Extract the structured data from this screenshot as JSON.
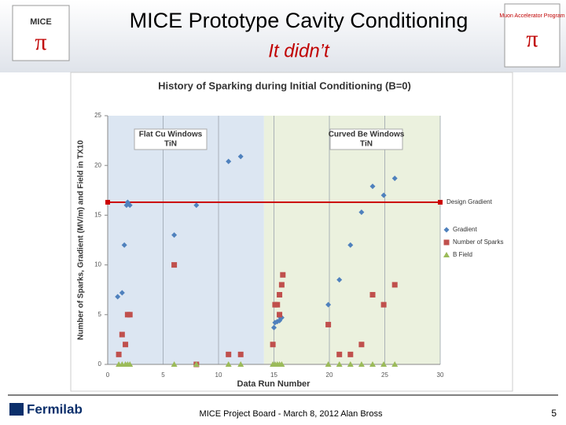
{
  "slide": {
    "title": "MICE Prototype Cavity Conditioning",
    "subtitle": "It didn’t",
    "logo_left": "MICE",
    "logo_right": "Muon Accelerator Program",
    "footer_logo": "Fermilab",
    "footer": "MICE Project Board - March 8, 2012 Alan Bross",
    "page": "5"
  },
  "chart_data": {
    "type": "scatter",
    "title": "History of Sparking during Initial Conditioning (B=0)",
    "x_label": "Data Run Number",
    "y_label": "Number of Sparks, Gradient (MV/m) and Field in TX10",
    "xlim": [
      0,
      30
    ],
    "xticks": [
      0,
      5,
      10,
      15,
      20,
      25,
      30
    ],
    "ylim": [
      0,
      25
    ],
    "yticks": [
      0,
      5,
      10,
      15,
      20,
      25
    ],
    "grid": "x",
    "regions": [
      {
        "label": [
          "Flat Cu Windows",
          "TiN"
        ],
        "range": [
          0,
          14.1
        ],
        "color": "#dce6f2"
      },
      {
        "label": [
          "Curved Be Windows",
          "TiN"
        ],
        "range": [
          14.1,
          30
        ],
        "color": "#ebf1de"
      }
    ],
    "reference_line": {
      "label": "Design Gradient",
      "value": 16.3,
      "color": "#cc0000"
    },
    "series": [
      {
        "name": "Gradient",
        "color": "#4f81bd",
        "marker": "diamond",
        "x": [
          0.9,
          1.3,
          1.5,
          1.8,
          2.0,
          1.7,
          6.0,
          8.0,
          10.9,
          12.0,
          15.0,
          15.1,
          15.3,
          15.5,
          15.6,
          15.7,
          19.9,
          20.9,
          21.9,
          22.9,
          23.9,
          24.9,
          25.9
        ],
        "values": [
          6.8,
          7.2,
          12.0,
          16.3,
          16.0,
          16.0,
          13.0,
          16.0,
          20.4,
          20.9,
          3.7,
          4.2,
          4.3,
          4.4,
          4.7,
          4.7,
          6.0,
          8.5,
          12.0,
          15.3,
          17.9,
          17.0,
          18.7
        ]
      },
      {
        "name": "Number of Sparks",
        "color": "#c0504d",
        "marker": "square",
        "x": [
          1.0,
          1.3,
          1.6,
          1.8,
          2.0,
          6.0,
          8.0,
          10.9,
          12.0,
          14.9,
          15.1,
          15.3,
          15.5,
          15.5,
          15.7,
          15.8,
          19.9,
          20.9,
          21.9,
          22.9,
          23.9,
          24.9,
          25.9
        ],
        "values": [
          1,
          3,
          2,
          5,
          5,
          10,
          0,
          1,
          1,
          2,
          6,
          6,
          5,
          7,
          8,
          9,
          4,
          1,
          1,
          2,
          7,
          6,
          8
        ]
      },
      {
        "name": "B Field",
        "color": "#9bbb59",
        "marker": "triangle",
        "x": [
          1.0,
          1.3,
          1.6,
          1.8,
          2.0,
          6.0,
          8.0,
          10.9,
          12.0,
          14.9,
          15.1,
          15.3,
          15.5,
          15.7,
          19.9,
          20.9,
          21.9,
          22.9,
          23.9,
          24.9,
          25.9
        ],
        "values": [
          0,
          0,
          0,
          0,
          0,
          0,
          0,
          0,
          0,
          0,
          0,
          0,
          0,
          0,
          0,
          0,
          0,
          0,
          0,
          0,
          0
        ]
      }
    ]
  }
}
